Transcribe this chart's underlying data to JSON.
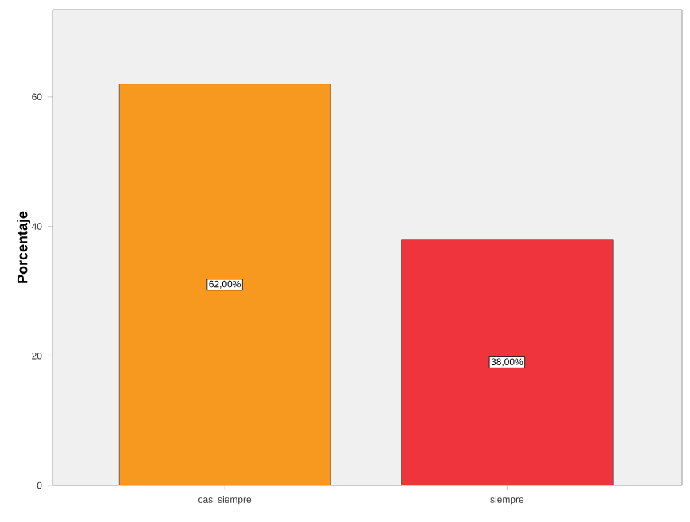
{
  "chart_data": {
    "type": "bar",
    "ylabel": "Porcentaje",
    "categories": [
      "casi siempre",
      "siempre"
    ],
    "values": [
      62,
      38
    ],
    "colors": [
      "#f7991f",
      "#ef343e"
    ],
    "value_labels": [
      "62,00%",
      "38,00%"
    ],
    "ylim": [
      0,
      73.5
    ],
    "yticks": [
      0,
      20,
      40,
      60
    ],
    "grid": false
  }
}
